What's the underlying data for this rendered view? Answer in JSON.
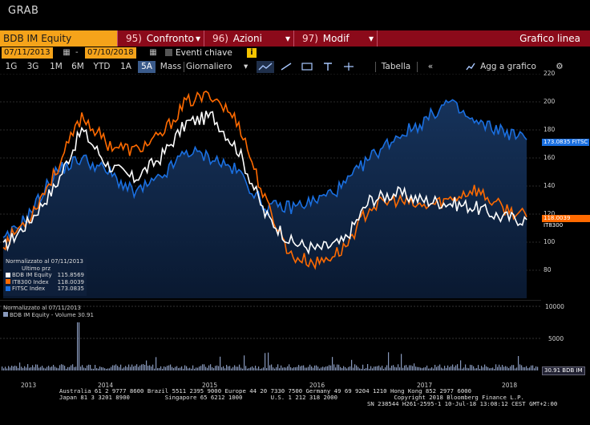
{
  "header": {
    "grab": "GRAB"
  },
  "menubar": {
    "ticker": "BDB IM Equity",
    "items": [
      {
        "num": "95)",
        "label": "Confronto"
      },
      {
        "num": "96)",
        "label": "Azioni"
      },
      {
        "num": "97)",
        "label": "Modif"
      }
    ],
    "chart_type": "Grafico linea"
  },
  "dates": {
    "start": "07/11/2013",
    "end": "07/10/2018",
    "events_label": "Eventi chiave",
    "info": "i"
  },
  "toolbar": {
    "periods": [
      "1G",
      "3G",
      "1M",
      "6M",
      "YTD",
      "1A",
      "5A",
      "Mass"
    ],
    "active_period": "5A",
    "frequency": "Giornaliero",
    "table": "Tabella",
    "add_chart": "Agg a grafico"
  },
  "colors": {
    "bdb": "#ffffff",
    "it8300": "#ff6a00",
    "fitsc": "#1a6fe0",
    "accent": "#f5a31a",
    "menubar": "#8b0a1a"
  },
  "legend": {
    "normalized": "Normalizzato al 07/11/2013",
    "last_price": "Ultimo prz",
    "rows": [
      {
        "name": "BDB IM Equity",
        "value": "115.8569"
      },
      {
        "name": "IT8300 Index",
        "value": "118.0039"
      },
      {
        "name": "FITSC Index",
        "value": "173.0835"
      }
    ]
  },
  "price_labels": {
    "fitsc": "173.0835 FITSC",
    "it8300": "118.0039 IT8300"
  },
  "volume": {
    "normalized": "Normalizzato al 07/11/2013",
    "label": "BDB IM Equity - Volume 30.91",
    "end_label": "30.91 BDB IM",
    "ticks": [
      "10000",
      "5000"
    ]
  },
  "footer": {
    "line1": "Australia 61 2 9777 8600 Brazil 5511 2395 9000 Europe 44 20 7330 7500 Germany 49 69 9204 1210 Hong Kong 852 2977 6000",
    "line2": "Japan 81 3 3201 8900          Singapore 65 6212 1000        U.S. 1 212 318 2000                Copyright 2018 Bloomberg Finance L.P.",
    "line3": "SN 238544 H261-2595-1 10-Jul-18 13:08:12 CEST GMT+2:00"
  },
  "chart_data": {
    "type": "line",
    "x": [
      "2013-07",
      "2013-10",
      "2014-01",
      "2014-04",
      "2014-07",
      "2014-10",
      "2015-01",
      "2015-04",
      "2015-07",
      "2015-10",
      "2016-01",
      "2016-04",
      "2016-07",
      "2016-10",
      "2017-01",
      "2017-04",
      "2017-07",
      "2017-10",
      "2018-01",
      "2018-04",
      "2018-07"
    ],
    "series": [
      {
        "name": "BDB IM Equity",
        "values": [
          96,
          115,
          140,
          180,
          155,
          145,
          160,
          185,
          190,
          165,
          120,
          100,
          95,
          100,
          130,
          135,
          130,
          128,
          125,
          118,
          116
        ]
      },
      {
        "name": "IT8300 Index",
        "values": [
          98,
          118,
          150,
          190,
          170,
          165,
          175,
          200,
          205,
          185,
          130,
          90,
          85,
          95,
          125,
          130,
          125,
          130,
          138,
          125,
          118
        ]
      },
      {
        "name": "FITSC Index",
        "values": [
          100,
          120,
          150,
          160,
          150,
          135,
          145,
          165,
          160,
          150,
          125,
          125,
          130,
          140,
          160,
          175,
          185,
          200,
          185,
          180,
          173
        ]
      }
    ],
    "yticks": [
      80,
      100,
      120,
      140,
      160,
      180,
      200,
      220
    ],
    "xticks": [
      "2013",
      "2014",
      "2015",
      "2016",
      "2017",
      "2018"
    ],
    "ylim": [
      60,
      220
    ],
    "grid": true,
    "legend": "bottom-left"
  }
}
